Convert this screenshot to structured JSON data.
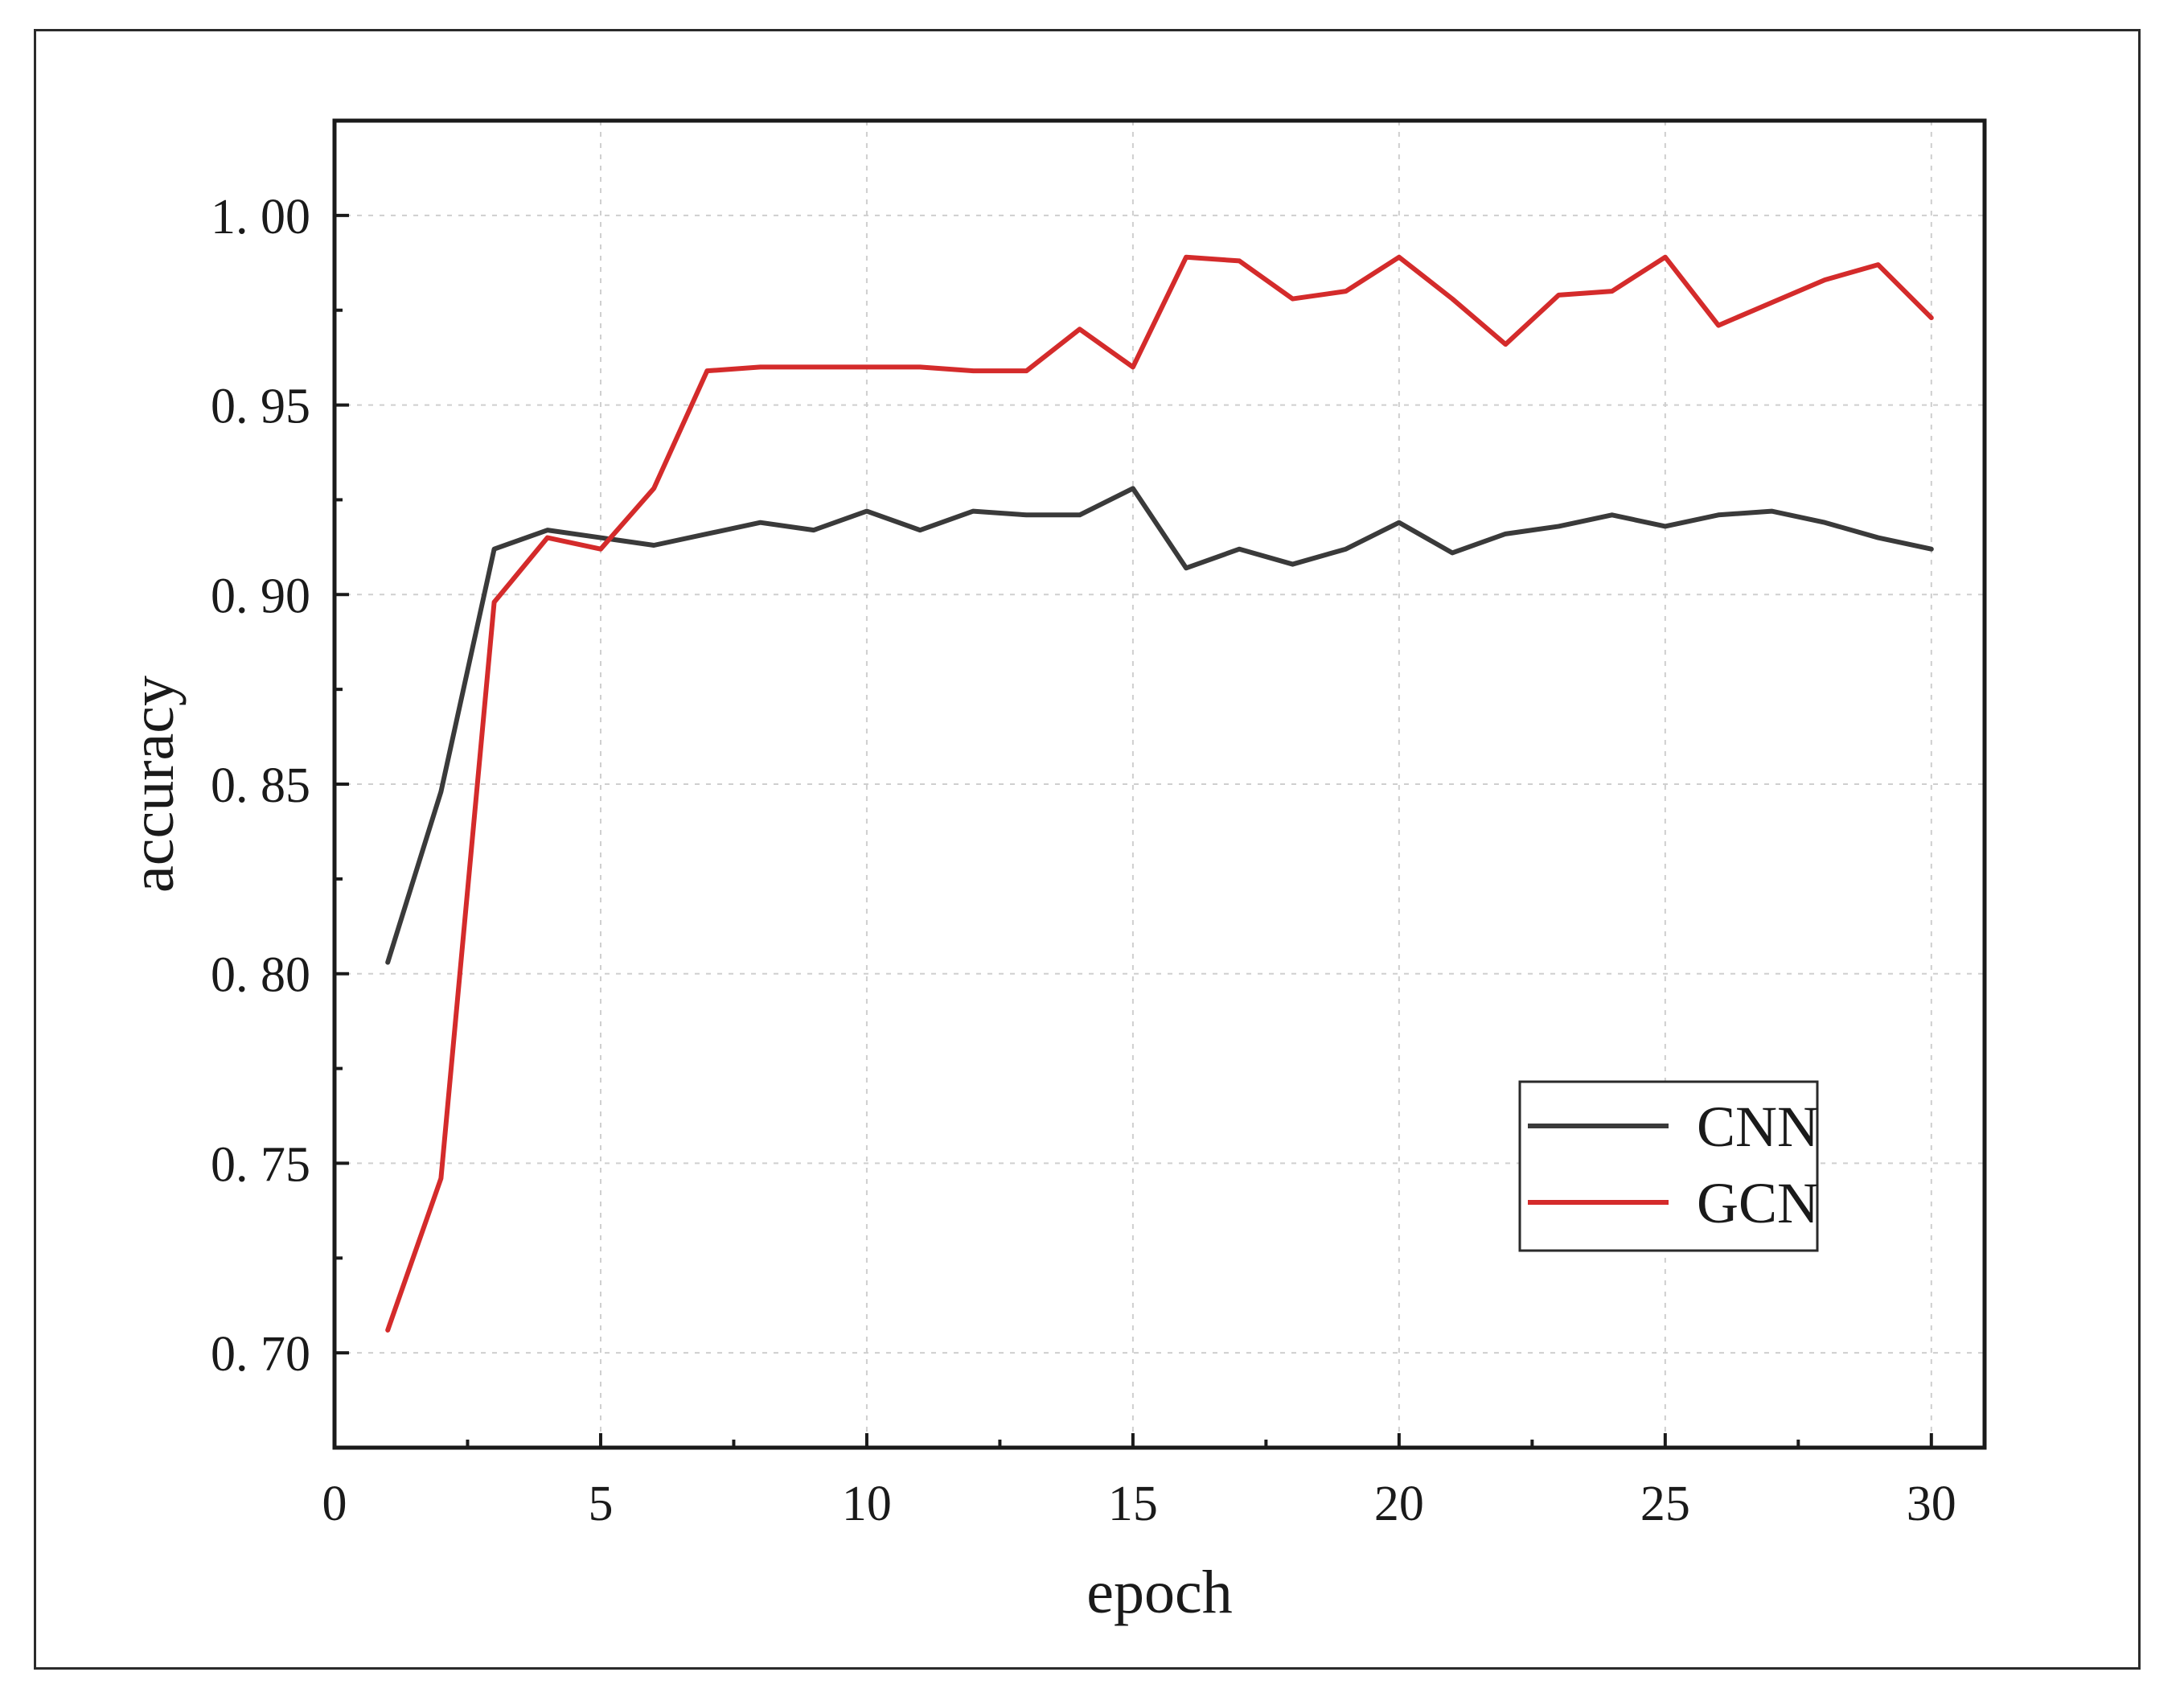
{
  "chart_data": {
    "type": "line",
    "xlabel": "epoch",
    "ylabel": "accuracy",
    "xlim": [
      0,
      31
    ],
    "ylim": [
      0.675,
      1.025
    ],
    "x_ticks": [
      0,
      5,
      10,
      15,
      20,
      25,
      30
    ],
    "x_tick_labels": [
      "0",
      "5",
      "10",
      "15",
      "20",
      "25",
      "30"
    ],
    "x_minor_ticks": [
      2.5,
      7.5,
      12.5,
      17.5,
      22.5,
      27.5
    ],
    "y_ticks": [
      0.7,
      0.75,
      0.8,
      0.85,
      0.9,
      0.95,
      1.0
    ],
    "y_tick_labels": [
      "0. 70",
      "0. 75",
      "0. 80",
      "0. 85",
      "0. 90",
      "0. 95",
      "1. 00"
    ],
    "y_minor_ticks": [
      0.725,
      0.775,
      0.825,
      0.875,
      0.925,
      0.975
    ],
    "grid": true,
    "legend_position": "bottom-right",
    "x": [
      1,
      2,
      3,
      4,
      5,
      6,
      7,
      8,
      9,
      10,
      11,
      12,
      13,
      14,
      15,
      16,
      17,
      18,
      19,
      20,
      21,
      22,
      23,
      24,
      25,
      26,
      27,
      28,
      29,
      30
    ],
    "series": [
      {
        "name": "CNN",
        "color": "#3a3a3a",
        "values": [
          0.803,
          0.848,
          0.912,
          0.917,
          0.915,
          0.913,
          0.916,
          0.919,
          0.917,
          0.922,
          0.917,
          0.922,
          0.921,
          0.921,
          0.928,
          0.907,
          0.912,
          0.908,
          0.912,
          0.919,
          0.911,
          0.916,
          0.918,
          0.921,
          0.918,
          0.921,
          0.922,
          0.919,
          0.915,
          0.912
        ]
      },
      {
        "name": "GCN",
        "color": "#d42b2b",
        "values": [
          0.706,
          0.746,
          0.898,
          0.915,
          0.912,
          0.928,
          0.959,
          0.96,
          0.96,
          0.96,
          0.96,
          0.959,
          0.959,
          0.97,
          0.96,
          0.989,
          0.988,
          0.978,
          0.98,
          0.989,
          0.978,
          0.966,
          0.979,
          0.98,
          0.989,
          0.971,
          0.977,
          0.983,
          0.987,
          0.973
        ]
      }
    ]
  }
}
